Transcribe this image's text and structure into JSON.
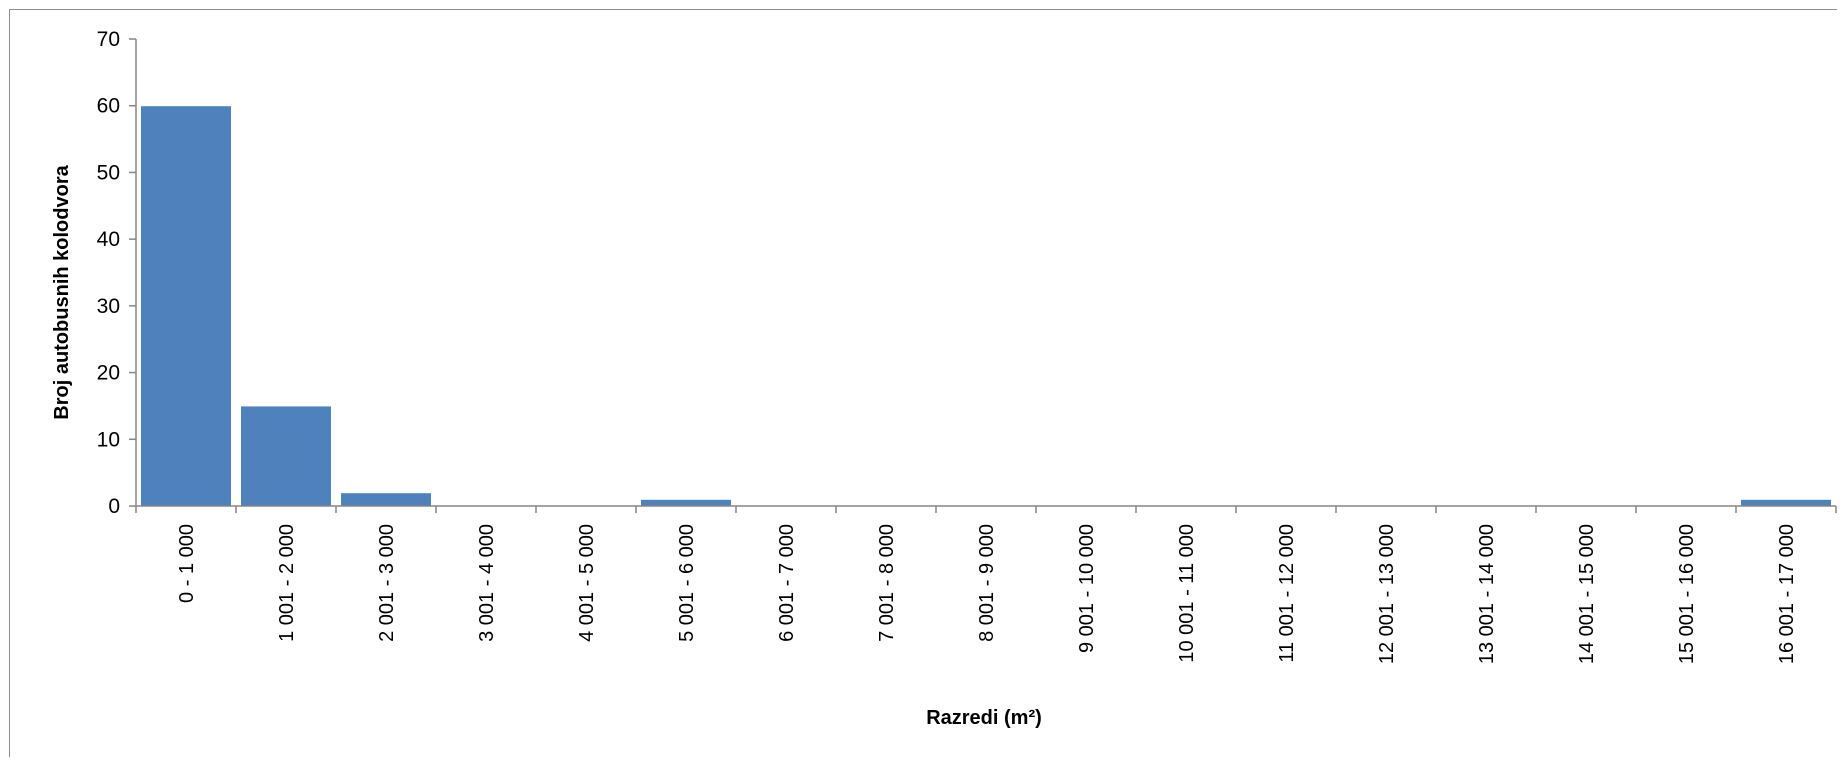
{
  "chart_data": {
    "type": "bar",
    "categories": [
      "0 - 1 000",
      "1 001 - 2 000",
      "2 001 - 3 000",
      "3 001 - 4 000",
      "4 001 - 5 000",
      "5 001 - 6 000",
      "6 001 - 7 000",
      "7 001 - 8 000",
      "8 001 - 9 000",
      "9 001 - 10 000",
      "10 001 - 11 000",
      "11 001 - 12 000",
      "12 001 - 13 000",
      "13 001 - 14 000",
      "14 001 - 15 000",
      "15 001 - 16 000",
      "16 001 - 17 000"
    ],
    "values": [
      60,
      15,
      2,
      0,
      0,
      1,
      0,
      0,
      0,
      0,
      0,
      0,
      0,
      0,
      0,
      0,
      1
    ],
    "title": "",
    "xlabel": "Razredi (m²)",
    "ylabel": "Broj autobusnih kolodvora",
    "ylim": [
      0,
      70
    ],
    "yticks": [
      0,
      10,
      20,
      30,
      40,
      50,
      60,
      70
    ],
    "grid": false,
    "legend": "none",
    "bar_color": "#4F81BD",
    "axis_color": "#868686"
  }
}
